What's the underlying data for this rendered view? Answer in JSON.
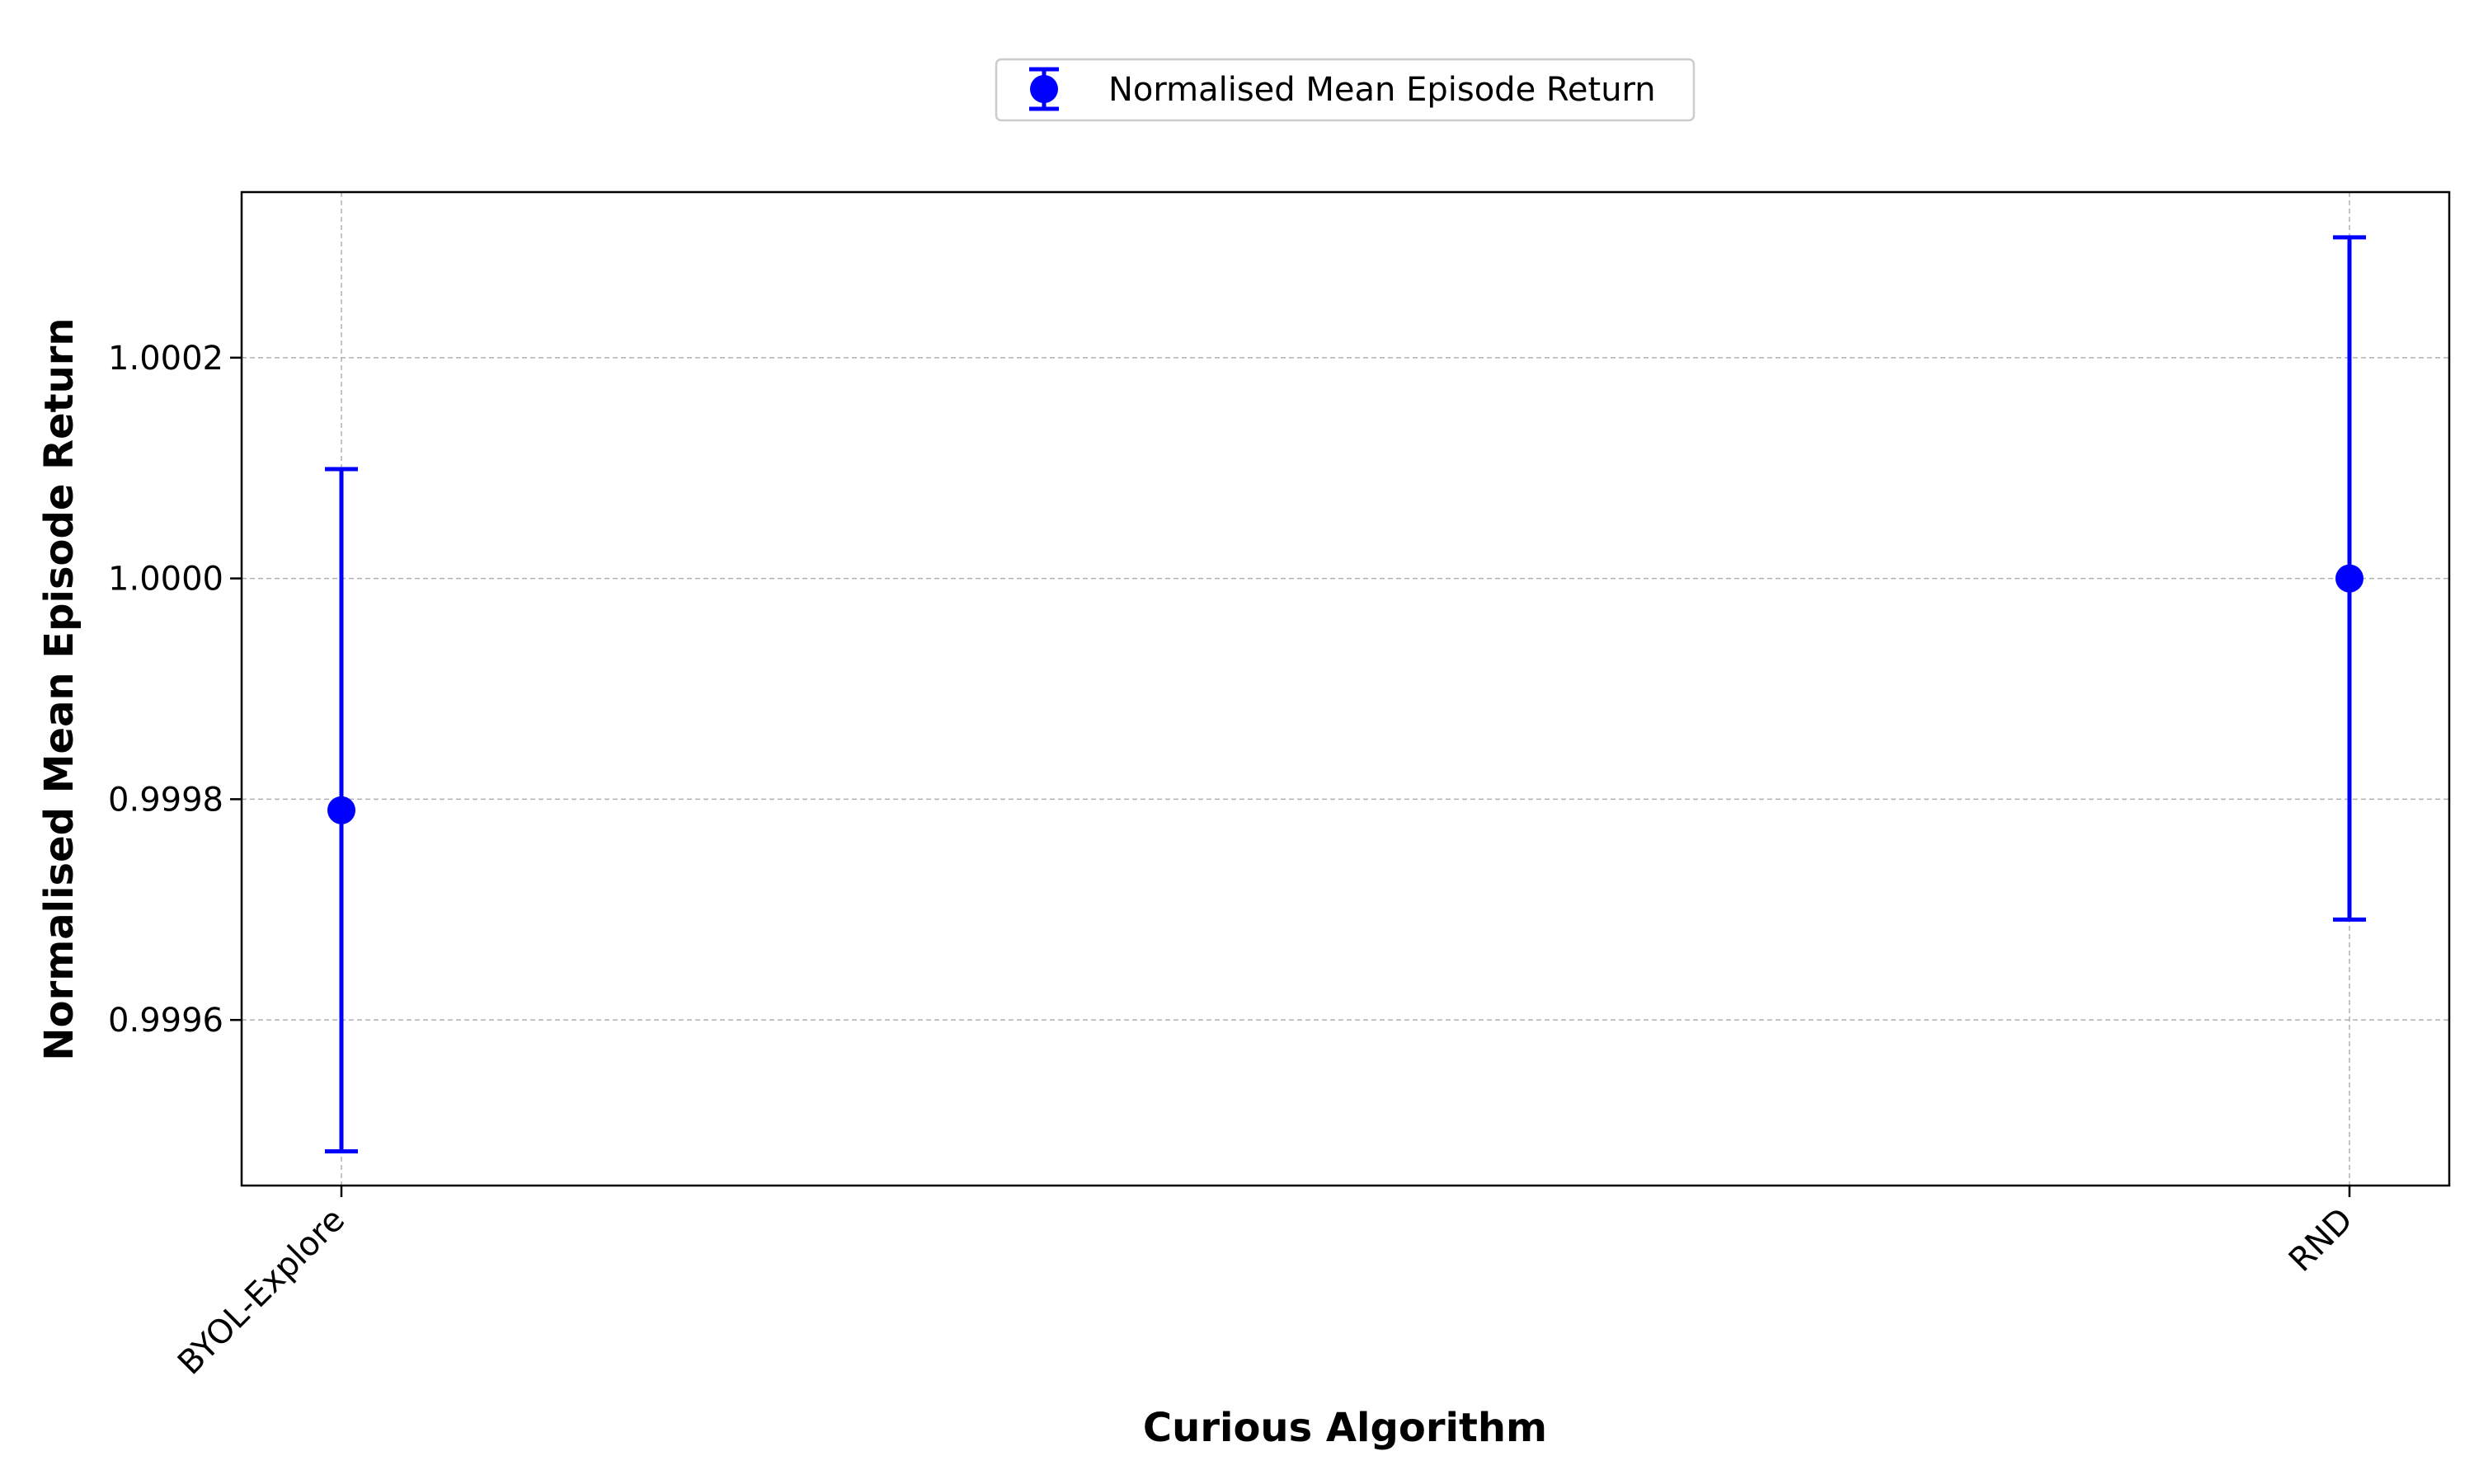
{
  "chart_data": {
    "type": "scatter",
    "title": "",
    "xlabel": "Curious Algorithm",
    "ylabel": "Normalised Mean Episode Return",
    "categories": [
      "BYOL-Explore",
      "RND"
    ],
    "series": [
      {
        "name": "Normalised Mean Episode Return",
        "values": [
          0.99979,
          1.0
        ],
        "errors": [
          0.000309,
          0.000309
        ]
      }
    ],
    "ylim": [
      0.99945,
      1.00035
    ],
    "yticks": [
      0.9996,
      0.9998,
      1.0,
      1.0002
    ],
    "ytick_labels": [
      "0.9996",
      "0.9998",
      "1.0000",
      "1.0002"
    ],
    "grid": true,
    "legend": "top-center",
    "color": "#0000ff"
  }
}
